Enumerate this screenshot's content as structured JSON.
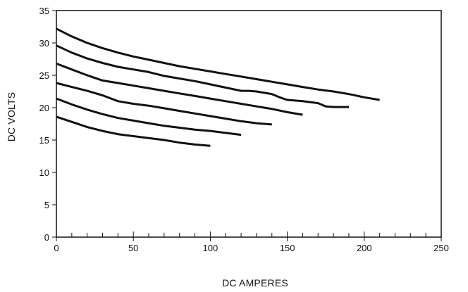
{
  "chart_data": {
    "type": "line",
    "title": "",
    "xlabel": "DC AMPERES",
    "ylabel": "DC VOLTS",
    "xlim": [
      0,
      250
    ],
    "ylim": [
      0,
      35
    ],
    "x_ticks": [
      0,
      50,
      100,
      150,
      200,
      250
    ],
    "x_minor_ticks": [
      10,
      20,
      30,
      40,
      60,
      70,
      80,
      90,
      110,
      120,
      130,
      140,
      160,
      170,
      180,
      190,
      210,
      220,
      230,
      240
    ],
    "y_ticks": [
      0,
      5,
      10,
      15,
      20,
      25,
      30,
      35
    ],
    "grid": false,
    "legend": "none",
    "line_color": "#111111",
    "series": [
      {
        "x": [
          0,
          10,
          20,
          30,
          40,
          50,
          60,
          70,
          80,
          90,
          100,
          110,
          120,
          130,
          140,
          150,
          160,
          170,
          180,
          190,
          200,
          210
        ],
        "y": [
          32.2,
          31.0,
          30.0,
          29.2,
          28.5,
          27.9,
          27.4,
          26.9,
          26.4,
          26.0,
          25.6,
          25.2,
          24.8,
          24.4,
          24.0,
          23.6,
          23.2,
          22.8,
          22.5,
          22.1,
          21.6,
          21.2
        ]
      },
      {
        "x": [
          0,
          10,
          20,
          30,
          40,
          50,
          60,
          70,
          80,
          90,
          100,
          110,
          120,
          125,
          130,
          140,
          145,
          150,
          160,
          170,
          175,
          180,
          190
        ],
        "y": [
          29.6,
          28.5,
          27.6,
          26.9,
          26.3,
          25.9,
          25.5,
          24.9,
          24.5,
          24.1,
          23.6,
          23.1,
          22.6,
          22.6,
          22.5,
          22.1,
          21.6,
          21.2,
          21.0,
          20.7,
          20.2,
          20.1,
          20.1
        ]
      },
      {
        "x": [
          0,
          10,
          20,
          30,
          40,
          50,
          60,
          70,
          80,
          90,
          100,
          110,
          120,
          130,
          140,
          150,
          160
        ],
        "y": [
          26.8,
          25.9,
          25.0,
          24.2,
          23.8,
          23.4,
          23.0,
          22.6,
          22.2,
          21.8,
          21.4,
          21.0,
          20.6,
          20.2,
          19.8,
          19.3,
          18.9
        ]
      },
      {
        "x": [
          0,
          10,
          20,
          30,
          40,
          50,
          60,
          70,
          80,
          90,
          100,
          110,
          120,
          130,
          140
        ],
        "y": [
          23.8,
          23.2,
          22.6,
          21.9,
          21.0,
          20.6,
          20.3,
          19.9,
          19.5,
          19.1,
          18.7,
          18.3,
          17.9,
          17.6,
          17.4
        ]
      },
      {
        "x": [
          0,
          10,
          20,
          30,
          40,
          50,
          60,
          70,
          80,
          90,
          100,
          110,
          120
        ],
        "y": [
          21.4,
          20.5,
          19.7,
          19.0,
          18.4,
          18.0,
          17.6,
          17.2,
          16.9,
          16.6,
          16.4,
          16.1,
          15.8
        ]
      },
      {
        "x": [
          0,
          10,
          20,
          30,
          40,
          50,
          60,
          70,
          80,
          90,
          100
        ],
        "y": [
          18.6,
          17.8,
          17.0,
          16.4,
          15.9,
          15.6,
          15.3,
          15.0,
          14.6,
          14.3,
          14.1
        ]
      }
    ]
  }
}
